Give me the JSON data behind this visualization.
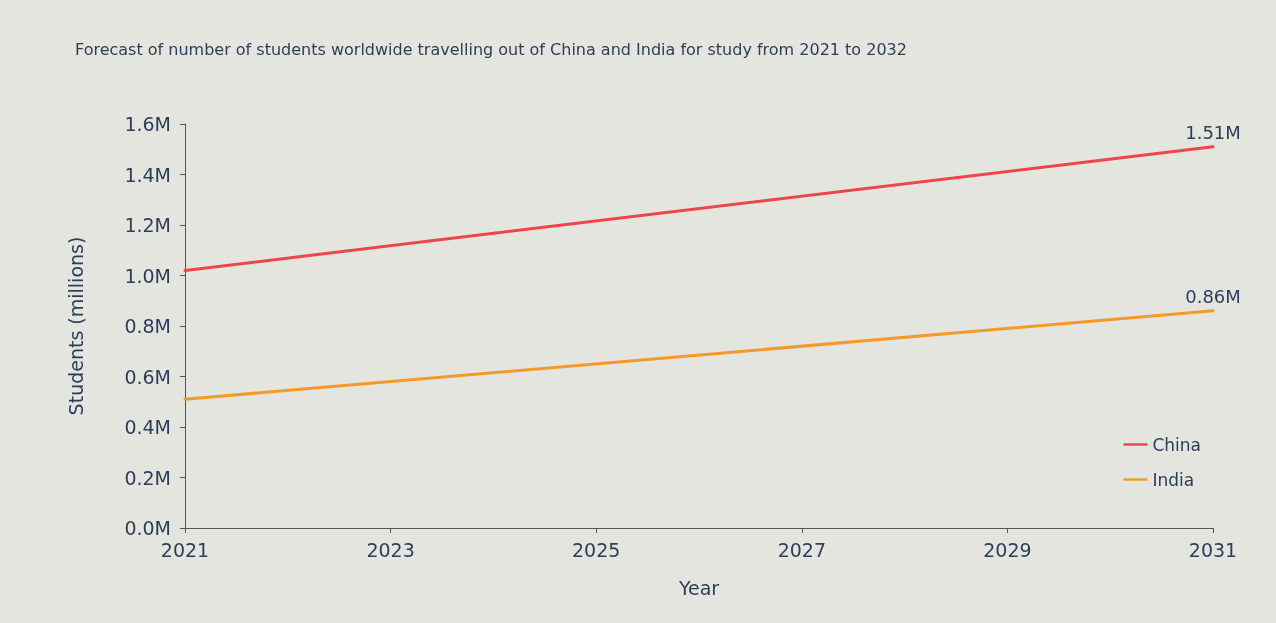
{
  "chart_data": {
    "type": "line",
    "title": "Forecast of number of students worldwide travelling out of China and India for study from 2021 to 2032",
    "xlabel": "Year",
    "ylabel": "Students (millions)",
    "x": [
      2021,
      2031
    ],
    "series": [
      {
        "name": "China",
        "color": "#f0444a",
        "values": [
          1.02,
          1.51
        ],
        "value_labels": [
          null,
          "1.51M"
        ]
      },
      {
        "name": "India",
        "color": "#f39a2a",
        "values": [
          0.51,
          0.86
        ],
        "value_labels": [
          null,
          "0.86M"
        ]
      }
    ],
    "xlim": [
      2021,
      2031
    ],
    "xticks": [
      2021,
      2023,
      2025,
      2027,
      2029,
      2031
    ],
    "ylim": [
      0,
      1.6
    ],
    "yticks": [
      {
        "value": 0,
        "label": "0.0M"
      },
      {
        "value": 0.2,
        "label": "0.2M"
      },
      {
        "value": 0.4,
        "label": "0.4M"
      },
      {
        "value": 0.6,
        "label": "0.6M"
      },
      {
        "value": 0.8,
        "label": "0.8M"
      },
      {
        "value": 1.0,
        "label": "1.0M"
      },
      {
        "value": 1.2,
        "label": "1.2M"
      },
      {
        "value": 1.4,
        "label": "1.4M"
      },
      {
        "value": 1.6,
        "label": "1.6M"
      }
    ],
    "grid": false,
    "legend": "bottom right",
    "marker": "none",
    "line_style": "solid"
  }
}
